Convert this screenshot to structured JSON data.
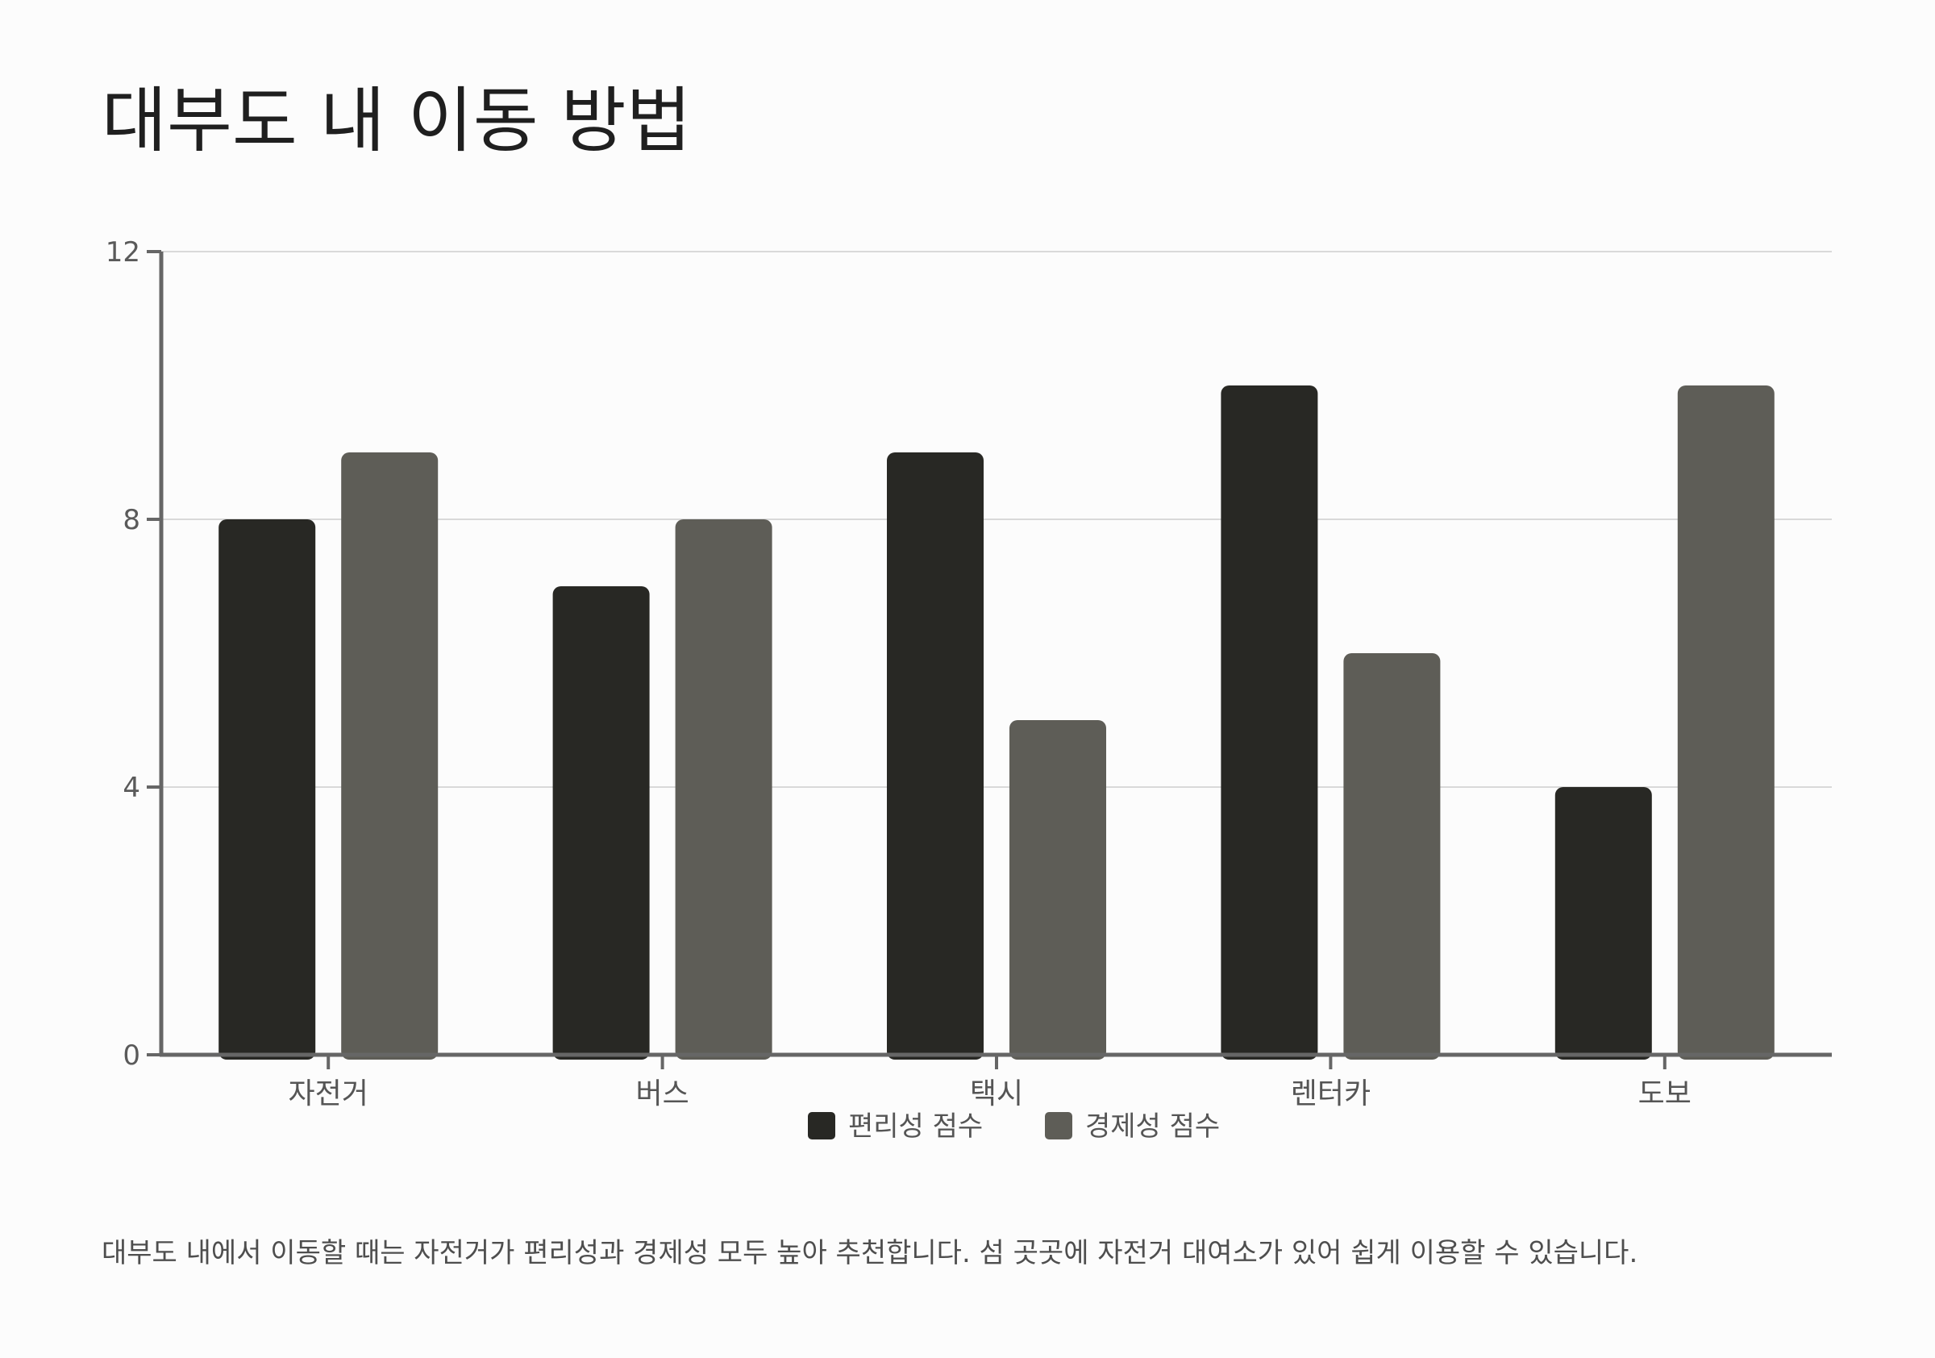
{
  "title": "대부도 내 이동 방법",
  "footer_note": "대부도 내에서 이동할 때는 자전거가 편리성과 경제성 모두 높아 추천합니다. 섬 곳곳에 자전거 대여소가 있어 쉽게 이용할 수 있습니다.",
  "colors": {
    "background": "#fcfcfc",
    "series_1": "#282824",
    "series_2": "#5e5d57",
    "axis": "#666666",
    "grid": "#d9d9d9",
    "text": "#555555"
  },
  "chart_data": {
    "type": "bar",
    "title": "대부도 내 이동 방법",
    "categories": [
      "자전거",
      "버스",
      "택시",
      "렌터카",
      "도보"
    ],
    "series": [
      {
        "name": "편리성 점수",
        "values": [
          8,
          7,
          9,
          10,
          4
        ]
      },
      {
        "name": "경제성 점수",
        "values": [
          9,
          8,
          5,
          6,
          10
        ]
      }
    ],
    "y_ticks": [
      "0",
      "4",
      "8",
      "12"
    ],
    "ylim": [
      0,
      12
    ],
    "grid": true,
    "legend_position": "bottom-center"
  }
}
